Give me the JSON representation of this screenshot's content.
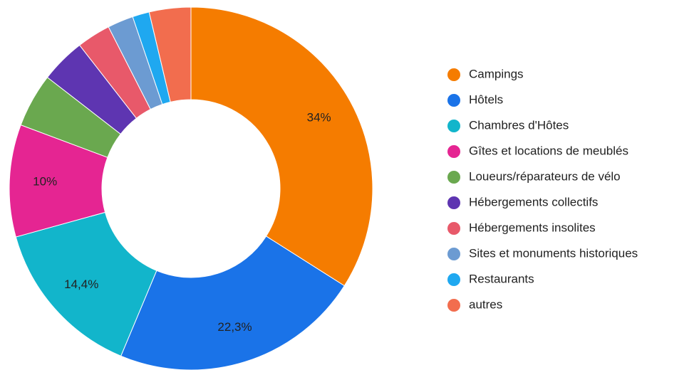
{
  "chart_data": {
    "type": "pie",
    "categories": [
      "Campings",
      "Hôtels",
      "Chambres d'Hôtes",
      "Gîtes et locations de meublés",
      "Loueurs/réparateurs de vélo",
      "Hébergements collectifs",
      "Hébergements insolites",
      "Sites et monuments historiques",
      "Restaurants",
      "autres"
    ],
    "values": [
      34,
      22.3,
      14.4,
      10,
      4.8,
      4,
      3,
      2.3,
      1.5,
      3.7
    ],
    "value_labels": [
      "34%",
      "22,3%",
      "14,4%",
      "10%",
      null,
      null,
      null,
      null,
      null,
      null
    ],
    "colors": [
      "#f57c00",
      "#1a73e8",
      "#12b5cb",
      "#e52592",
      "#6aa84f",
      "#5e35b1",
      "#e8596a",
      "#6c9bd2",
      "#1fa8f0",
      "#f26d4e"
    ],
    "legend": "right"
  }
}
